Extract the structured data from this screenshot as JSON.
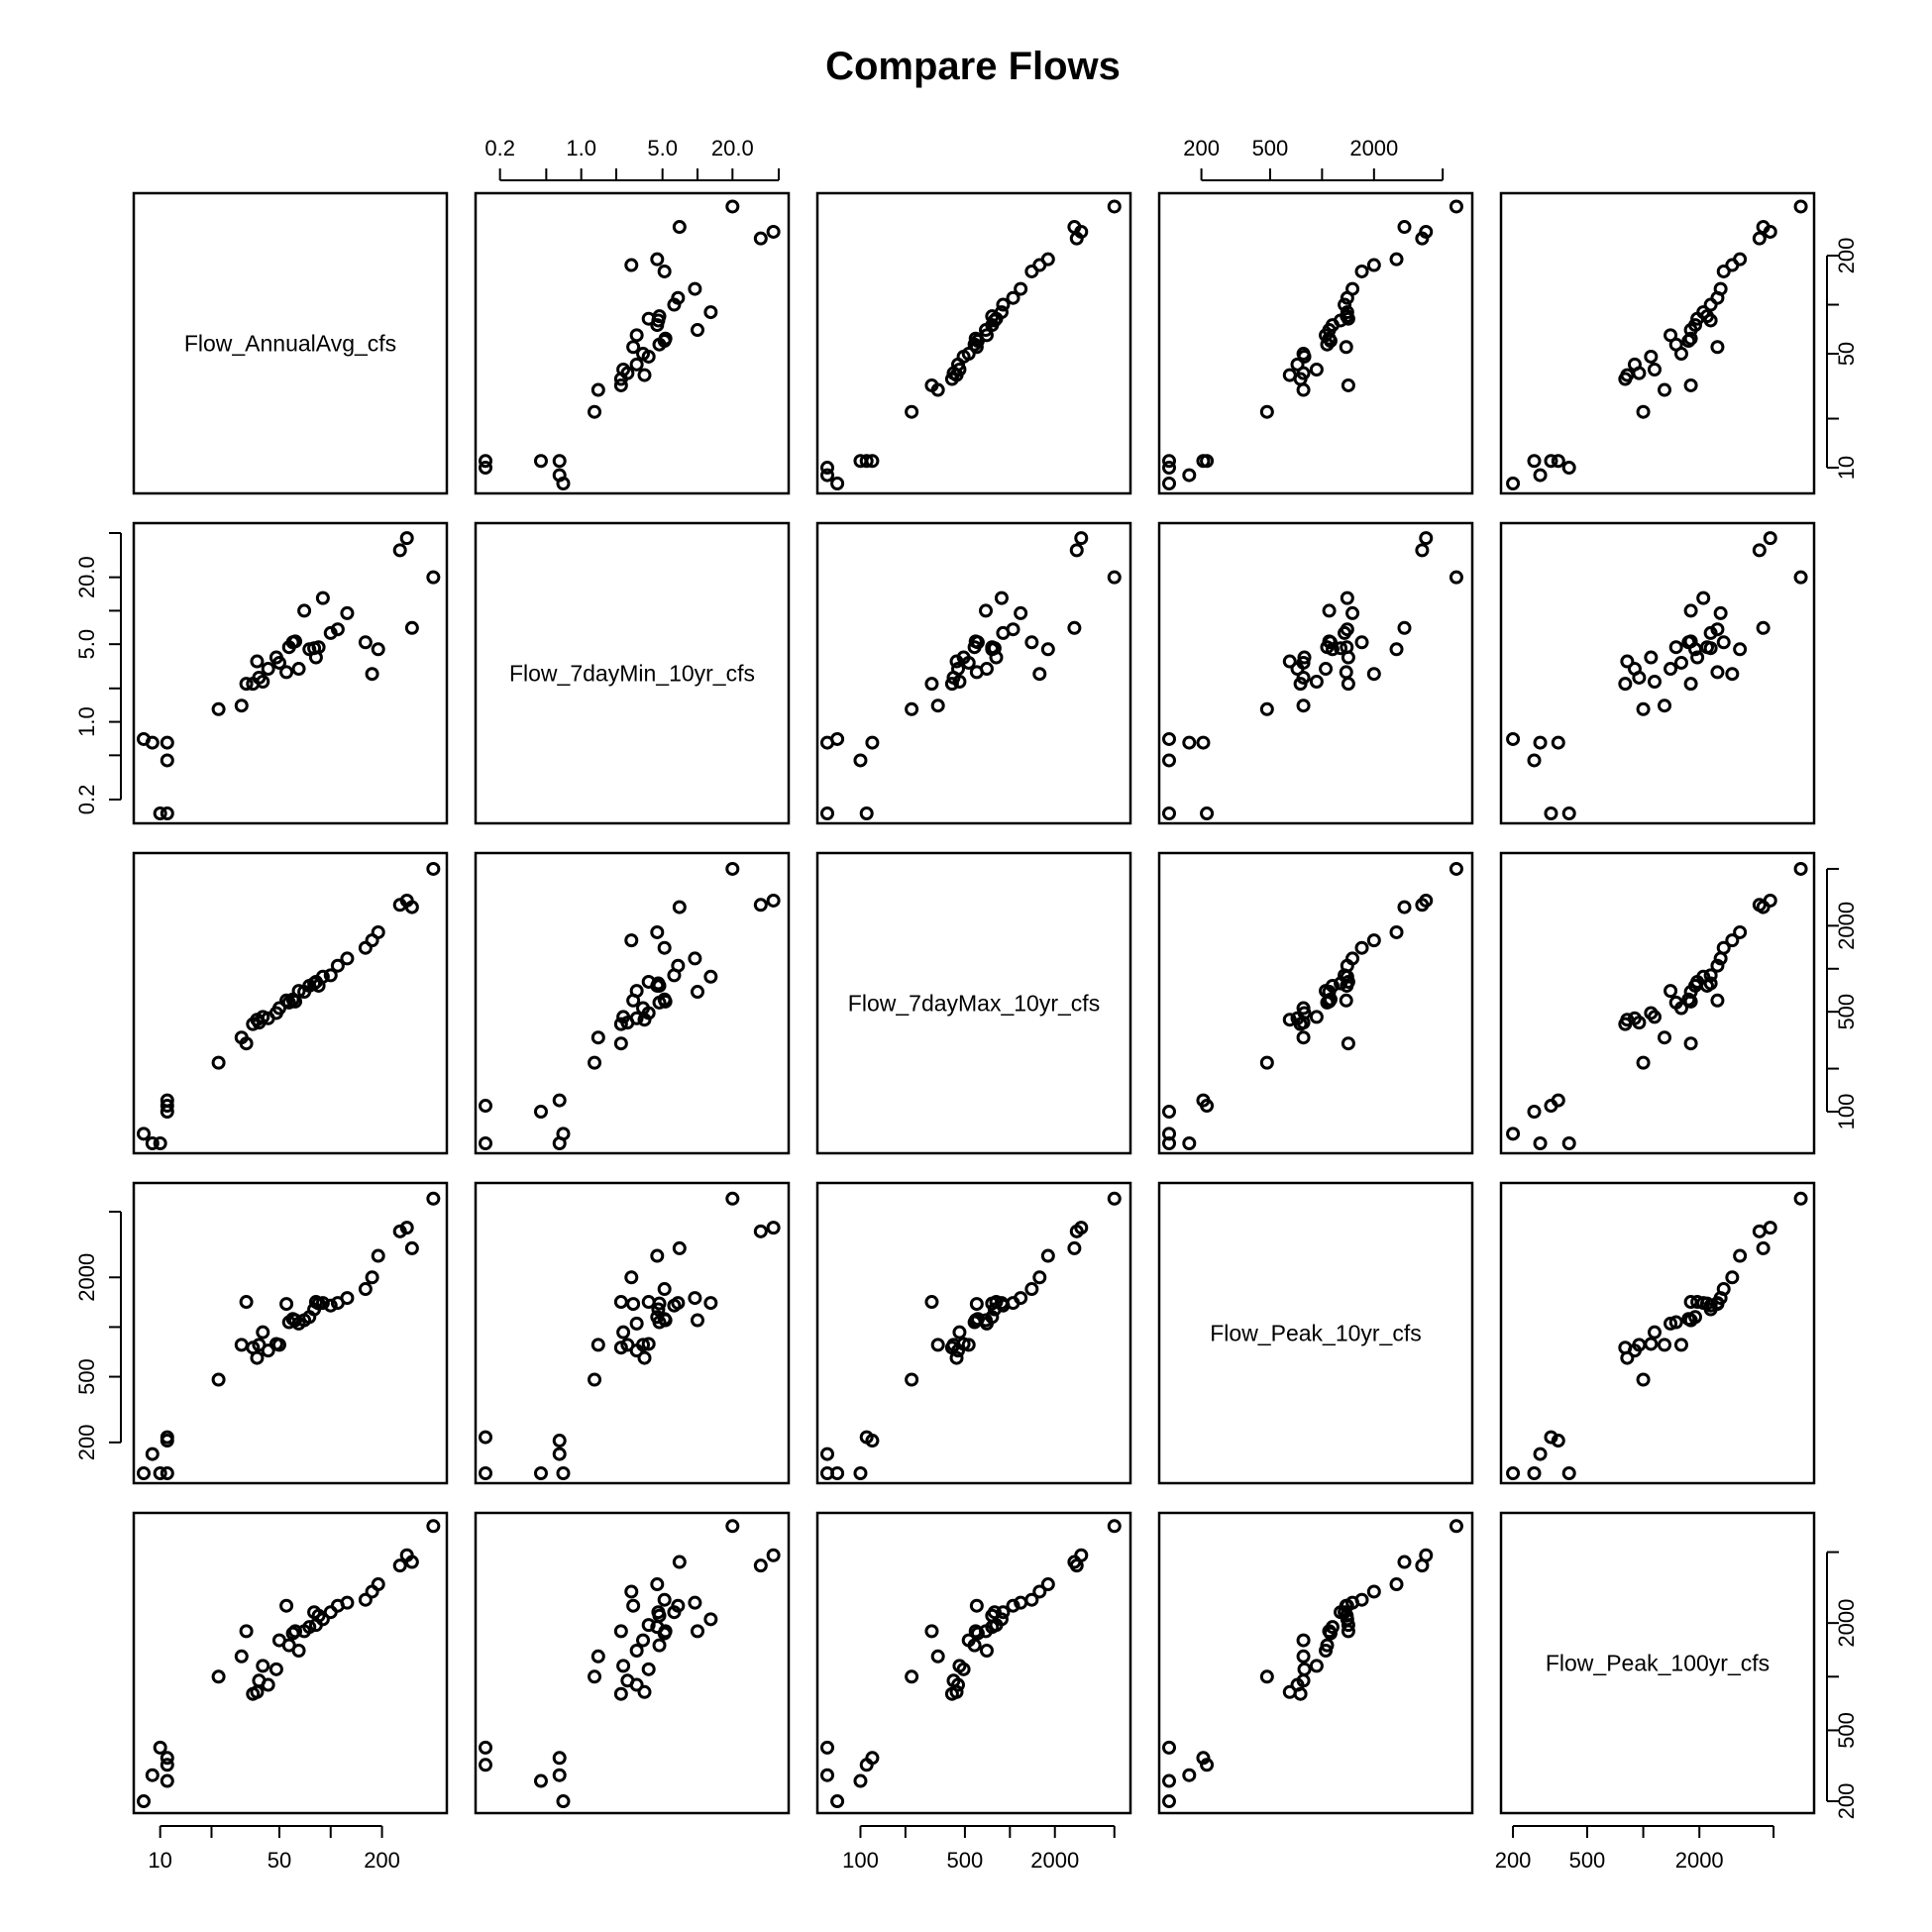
{
  "chart_data": {
    "type": "scatter",
    "title": "Compare Flows",
    "matrix": "scatterplot-matrix",
    "log_scale": true,
    "variables": [
      {
        "name": "Flow_AnnualAvg_cfs",
        "range": [
          8,
          420
        ],
        "ticks": [
          10,
          50,
          200
        ],
        "tick_labels": [
          "10",
          "50",
          "200"
        ]
      },
      {
        "name": "Flow_7dayMin_10yr_cfs",
        "range": [
          0.15,
          50
        ],
        "ticks": [
          0.2,
          1.0,
          5.0,
          20.0
        ],
        "tick_labels": [
          "0.2",
          "1.0",
          "5.0",
          "20.0"
        ]
      },
      {
        "name": "Flow_7dayMax_10yr_cfs",
        "range": [
          60,
          5500
        ],
        "ticks": [
          100,
          500,
          2000
        ],
        "tick_labels": [
          "100",
          "500",
          "2000"
        ]
      },
      {
        "name": "Flow_Peak_10yr_cfs",
        "range": [
          130,
          6500
        ],
        "ticks": [
          200,
          500,
          2000
        ],
        "tick_labels": [
          "200",
          "500",
          "2000"
        ]
      },
      {
        "name": "Flow_Peak_100yr_cfs",
        "range": [
          195,
          7300
        ],
        "ticks": [
          200,
          500,
          2000
        ],
        "tick_labels": [
          "200",
          "500",
          "2000"
        ]
      }
    ],
    "points": [
      [
        8,
        0.7,
        70,
        130,
        200
      ],
      [
        9,
        0.65,
        60,
        170,
        280
      ],
      [
        11,
        0.45,
        100,
        130,
        260
      ],
      [
        11,
        0.15,
        110,
        215,
        320
      ],
      [
        11,
        0.65,
        120,
        205,
        350
      ],
      [
        10,
        0.15,
        60,
        130,
        400
      ],
      [
        22,
        1.3,
        220,
        480,
        1000
      ],
      [
        30,
        1.4,
        330,
        780,
        1300
      ],
      [
        32,
        2.2,
        300,
        1420,
        1800
      ],
      [
        35,
        2.2,
        410,
        750,
        800
      ],
      [
        37,
        3.5,
        440,
        650,
        820
      ],
      [
        38,
        2.5,
        420,
        780,
        950
      ],
      [
        40,
        2.3,
        460,
        930,
        1150
      ],
      [
        43,
        3.0,
        450,
        720,
        900
      ],
      [
        48,
        3.8,
        490,
        790,
        1100
      ],
      [
        50,
        3.4,
        530,
        780,
        1600
      ],
      [
        55,
        2.8,
        600,
        1380,
        2500
      ],
      [
        57,
        4.7,
        580,
        1070,
        1500
      ],
      [
        60,
        5.2,
        610,
        1120,
        1750
      ],
      [
        62,
        5.3,
        590,
        1100,
        1800
      ],
      [
        65,
        3.0,
        700,
        1050,
        1400
      ],
      [
        70,
        10.0,
        690,
        1100,
        1800
      ],
      [
        75,
        4.5,
        760,
        1150,
        1900
      ],
      [
        80,
        4.6,
        790,
        1280,
        2300
      ],
      [
        82,
        3.8,
        810,
        1420,
        1950
      ],
      [
        85,
        4.7,
        760,
        1390,
        2200
      ],
      [
        90,
        13.0,
        880,
        1400,
        2100
      ],
      [
        100,
        6.3,
        900,
        1350,
        2300
      ],
      [
        110,
        6.8,
        1050,
        1400,
        2500
      ],
      [
        125,
        9.5,
        1180,
        1500,
        2600
      ],
      [
        160,
        5.2,
        1400,
        1700,
        2700
      ],
      [
        175,
        2.7,
        1580,
        2000,
        3000
      ],
      [
        190,
        4.5,
        1800,
        2700,
        3300
      ],
      [
        255,
        35.0,
        2800,
        3800,
        4200
      ],
      [
        280,
        45.0,
        3000,
        4000,
        4800
      ],
      [
        300,
        7.0,
        2700,
        3000,
        4400
      ],
      [
        400,
        20.0,
        5000,
        6000,
        7000
      ]
    ]
  }
}
